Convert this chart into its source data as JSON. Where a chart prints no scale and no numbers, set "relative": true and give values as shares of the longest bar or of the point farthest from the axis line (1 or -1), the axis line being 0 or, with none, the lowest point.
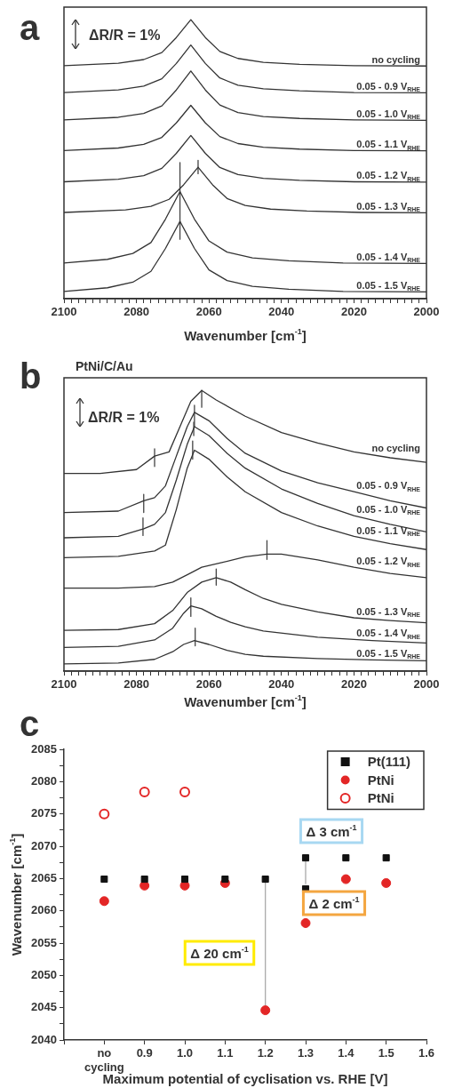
{
  "chart_data": [
    {
      "type": "line",
      "title": "a",
      "xlabel": "Wavenumber [cm$^{-1}$]",
      "relative": true,
      "xlim": [
        2100,
        2000
      ],
      "xticks": [
        2100,
        {
          "value": 2098,
          "label": null
        },
        {
          "value": 2096,
          "label": null
        },
        {
          "value": 2094,
          "label": null
        },
        {
          "value": 2092,
          "label": null
        },
        {
          "value": 2090,
          "label": null
        },
        {
          "value": 2088,
          "label": null
        },
        {
          "value": 2086,
          "label": null
        },
        {
          "value": 2084,
          "label": null
        },
        {
          "value": 2082,
          "label": null
        },
        2080,
        {
          "value": 2078,
          "label": null
        },
        {
          "value": 2076,
          "label": null
        },
        {
          "value": 2074,
          "label": null
        },
        {
          "value": 2072,
          "label": null
        },
        {
          "value": 2070,
          "label": null
        },
        {
          "value": 2068,
          "label": null
        },
        {
          "value": 2066,
          "label": null
        },
        {
          "value": 2064,
          "label": null
        },
        {
          "value": 2062,
          "label": null
        },
        2060,
        {
          "value": 2058,
          "label": null
        },
        {
          "value": 2056,
          "label": null
        },
        {
          "value": 2054,
          "label": null
        },
        {
          "value": 2052,
          "label": null
        },
        {
          "value": 2050,
          "label": null
        },
        {
          "value": 2048,
          "label": null
        },
        {
          "value": 2046,
          "label": null
        },
        {
          "value": 2044,
          "label": null
        },
        {
          "value": 2042,
          "label": null
        },
        2040,
        {
          "value": 2038,
          "label": null
        },
        {
          "value": 2036,
          "label": null
        },
        {
          "value": 2034,
          "label": null
        },
        {
          "value": 2032,
          "label": null
        },
        {
          "value": 2030,
          "label": null
        },
        {
          "value": 2028,
          "label": null
        },
        {
          "value": 2026,
          "label": null
        },
        {
          "value": 2024,
          "label": null
        },
        {
          "value": 2022,
          "label": null
        },
        2020,
        {
          "value": 2018,
          "label": null
        },
        {
          "value": 2016,
          "label": null
        },
        {
          "value": 2014,
          "label": null
        },
        {
          "value": 2012,
          "label": null
        },
        {
          "value": 2010,
          "label": null
        },
        {
          "value": 2008,
          "label": null
        },
        {
          "value": 2006,
          "label": null
        },
        {
          "value": 2004,
          "label": null
        },
        {
          "value": 2002,
          "label": null
        },
        2000
      ],
      "annotations": [
        "ΔR/R = 1%"
      ],
      "series": [
        {
          "name": "no cycling",
          "color": "#333333",
          "x": [
            2100,
            2085,
            2078,
            2073,
            2069,
            2065,
            2061,
            2057,
            2052,
            2045,
            2035,
            2020,
            2000
          ],
          "values": [
            0.835,
            0.844,
            0.857,
            0.882,
            0.936,
            1.0,
            0.936,
            0.886,
            0.861,
            0.847,
            0.84,
            0.835,
            0.834
          ]
        },
        {
          "name": "0.05 - 0.9 V$_{RHE}$",
          "color": "#333333",
          "x": [
            2100,
            2085,
            2078,
            2073,
            2069,
            2065,
            2061,
            2057,
            2052,
            2045,
            2035,
            2020,
            2000
          ],
          "values": [
            0.739,
            0.748,
            0.762,
            0.788,
            0.843,
            0.909,
            0.843,
            0.791,
            0.765,
            0.752,
            0.745,
            0.739,
            0.738
          ]
        },
        {
          "name": "0.05 - 1.0 V$_{RHE}$",
          "color": "#333333",
          "x": [
            2100,
            2085,
            2078,
            2073,
            2069,
            2065,
            2061,
            2057,
            2052,
            2045,
            2035,
            2020,
            2000
          ],
          "values": [
            0.641,
            0.65,
            0.664,
            0.691,
            0.748,
            0.816,
            0.748,
            0.694,
            0.667,
            0.653,
            0.646,
            0.641,
            0.639
          ]
        },
        {
          "name": "0.05 - 1.1 V$_{RHE}$",
          "color": "#333333",
          "x": [
            2100,
            2085,
            2078,
            2073,
            2069,
            2065,
            2061,
            2057,
            2052,
            2045,
            2035,
            2020,
            2000
          ],
          "values": [
            0.531,
            0.54,
            0.553,
            0.578,
            0.63,
            0.693,
            0.63,
            0.581,
            0.556,
            0.543,
            0.536,
            0.531,
            0.53
          ]
        },
        {
          "name": "0.05 - 1.2 V$_{RHE}$",
          "color": "#333333",
          "x": [
            2100,
            2085,
            2078,
            2073,
            2069,
            2065,
            2061,
            2057,
            2052,
            2045,
            2035,
            2020,
            2000
          ],
          "values": [
            0.419,
            0.428,
            0.441,
            0.467,
            0.521,
            0.585,
            0.521,
            0.47,
            0.445,
            0.431,
            0.424,
            0.419,
            0.418
          ]
        },
        {
          "name": "0.05 - 1.3 V$_{RHE}$",
          "color": "#333333",
          "x": [
            2100,
            2083,
            2076,
            2071,
            2067,
            2063,
            2059,
            2055,
            2050,
            2043,
            2033,
            2018,
            2000
          ],
          "values": [
            0.309,
            0.318,
            0.331,
            0.356,
            0.408,
            0.471,
            0.408,
            0.359,
            0.334,
            0.321,
            0.314,
            0.309,
            0.308
          ]
        },
        {
          "name": "0.05 - 1.4 V$_{RHE}$",
          "color": "#333333",
          "x": [
            2100,
            2088,
            2081,
            2076,
            2072,
            2068,
            2064,
            2060,
            2055,
            2048,
            2038,
            2023,
            2000
          ],
          "values": [
            0.128,
            0.141,
            0.162,
            0.201,
            0.285,
            0.384,
            0.285,
            0.207,
            0.167,
            0.146,
            0.136,
            0.128,
            0.126
          ]
        },
        {
          "name": "0.05 - 1.5 V$_{RHE}$",
          "color": "#333333",
          "x": [
            2100,
            2088,
            2081,
            2076,
            2072,
            2068,
            2064,
            2060,
            2055,
            2048,
            2038,
            2023,
            2000
          ],
          "values": [
            0.026,
            0.039,
            0.059,
            0.098,
            0.18,
            0.277,
            0.18,
            0.103,
            0.065,
            0.044,
            0.034,
            0.026,
            0.024
          ]
        },
        {
          "color": "#444444",
          "x": [
            2068,
            2068
          ],
          "values": [
            0.488,
            0.213
          ]
        },
        {
          "color": "#444444",
          "x": [
            2063,
            2063
          ],
          "values": [
            0.496,
            0.448
          ]
        }
      ]
    },
    {
      "type": "line",
      "title": "b",
      "subtitle": "PtNi/C/Au",
      "xlabel": "Wavenumber [cm$^{-1}$]",
      "relative": true,
      "xlim": [
        2100,
        2000
      ],
      "xticks": [
        2100,
        {
          "value": 2098,
          "label": null
        },
        {
          "value": 2096,
          "label": null
        },
        {
          "value": 2094,
          "label": null
        },
        {
          "value": 2092,
          "label": null
        },
        {
          "value": 2090,
          "label": null
        },
        {
          "value": 2088,
          "label": null
        },
        {
          "value": 2086,
          "label": null
        },
        {
          "value": 2084,
          "label": null
        },
        {
          "value": 2082,
          "label": null
        },
        2080,
        {
          "value": 2078,
          "label": null
        },
        {
          "value": 2076,
          "label": null
        },
        {
          "value": 2074,
          "label": null
        },
        {
          "value": 2072,
          "label": null
        },
        {
          "value": 2070,
          "label": null
        },
        {
          "value": 2068,
          "label": null
        },
        {
          "value": 2066,
          "label": null
        },
        {
          "value": 2064,
          "label": null
        },
        {
          "value": 2062,
          "label": null
        },
        2060,
        {
          "value": 2058,
          "label": null
        },
        {
          "value": 2056,
          "label": null
        },
        {
          "value": 2054,
          "label": null
        },
        {
          "value": 2052,
          "label": null
        },
        {
          "value": 2050,
          "label": null
        },
        {
          "value": 2048,
          "label": null
        },
        {
          "value": 2046,
          "label": null
        },
        {
          "value": 2044,
          "label": null
        },
        {
          "value": 2042,
          "label": null
        },
        2040,
        {
          "value": 2038,
          "label": null
        },
        {
          "value": 2036,
          "label": null
        },
        {
          "value": 2034,
          "label": null
        },
        {
          "value": 2032,
          "label": null
        },
        {
          "value": 2030,
          "label": null
        },
        {
          "value": 2028,
          "label": null
        },
        {
          "value": 2026,
          "label": null
        },
        {
          "value": 2024,
          "label": null
        },
        {
          "value": 2022,
          "label": null
        },
        2020,
        {
          "value": 2018,
          "label": null
        },
        {
          "value": 2016,
          "label": null
        },
        {
          "value": 2014,
          "label": null
        },
        {
          "value": 2012,
          "label": null
        },
        {
          "value": 2010,
          "label": null
        },
        {
          "value": 2008,
          "label": null
        },
        {
          "value": 2006,
          "label": null
        },
        {
          "value": 2004,
          "label": null
        },
        {
          "value": 2002,
          "label": null
        },
        2000
      ],
      "annotations": [
        "ΔR/R = 1%"
      ],
      "series": [
        {
          "name": "no cycling",
          "color": "#333333",
          "x": [
            2100,
            2090,
            2080,
            2075,
            2071,
            2068,
            2065,
            2062,
            2058,
            2050,
            2040,
            2030,
            2020,
            2010,
            2000
          ],
          "values": [
            0.704,
            0.704,
            0.718,
            0.766,
            0.781,
            0.871,
            0.961,
            1.0,
            0.966,
            0.908,
            0.85,
            0.813,
            0.781,
            0.76,
            0.744
          ]
        },
        {
          "name": "0.05 - 0.9 V$_{RHE}$",
          "color": "#333333",
          "x": [
            2100,
            2085,
            2078,
            2075,
            2072,
            2069,
            2066,
            2064,
            2060,
            2055,
            2050,
            2040,
            2030,
            2020,
            2010,
            2000
          ],
          "values": [
            0.565,
            0.57,
            0.607,
            0.618,
            0.66,
            0.766,
            0.871,
            0.922,
            0.892,
            0.829,
            0.776,
            0.713,
            0.671,
            0.639,
            0.607,
            0.581
          ]
        },
        {
          "name": "0.05 - 1.0 V$_{RHE}$",
          "color": "#333333",
          "x": [
            2100,
            2085,
            2078,
            2075,
            2072,
            2069,
            2066,
            2064,
            2060,
            2055,
            2050,
            2040,
            2030,
            2020,
            2010,
            2000
          ],
          "values": [
            0.475,
            0.48,
            0.507,
            0.523,
            0.565,
            0.681,
            0.808,
            0.871,
            0.839,
            0.776,
            0.723,
            0.649,
            0.597,
            0.554,
            0.523,
            0.496
          ]
        },
        {
          "name": "0.05 - 1.1 V$_{RHE}$",
          "color": "#333333",
          "x": [
            2100,
            2085,
            2075,
            2072,
            2069,
            2066,
            2064,
            2060,
            2055,
            2050,
            2040,
            2030,
            2020,
            2010,
            2000
          ],
          "values": [
            0.404,
            0.409,
            0.428,
            0.449,
            0.576,
            0.723,
            0.787,
            0.755,
            0.692,
            0.639,
            0.565,
            0.517,
            0.48,
            0.454,
            0.433
          ]
        },
        {
          "name": "0.05 - 1.2 V$_{RHE}$",
          "color": "#333333",
          "x": [
            2100,
            2085,
            2075,
            2070,
            2066,
            2062,
            2057,
            2050,
            2044,
            2040,
            2030,
            2020,
            2010,
            2000
          ],
          "values": [
            0.296,
            0.296,
            0.301,
            0.317,
            0.343,
            0.37,
            0.385,
            0.407,
            0.417,
            0.417,
            0.396,
            0.37,
            0.348,
            0.333
          ]
        },
        {
          "name": "0.05 - 1.3 V$_{RHE}$",
          "color": "#333333",
          "x": [
            2100,
            2085,
            2075,
            2070,
            2066,
            2062,
            2058,
            2054,
            2050,
            2045,
            2040,
            2030,
            2020,
            2010,
            2000
          ],
          "values": [
            0.145,
            0.148,
            0.169,
            0.216,
            0.28,
            0.317,
            0.333,
            0.317,
            0.29,
            0.259,
            0.238,
            0.211,
            0.19,
            0.18,
            0.172
          ]
        },
        {
          "name": "0.05 - 1.4 V$_{RHE}$",
          "color": "#333333",
          "x": [
            2100,
            2085,
            2075,
            2070,
            2067,
            2065,
            2062,
            2058,
            2054,
            2050,
            2045,
            2030,
            2015,
            2000
          ],
          "values": [
            0.084,
            0.088,
            0.111,
            0.153,
            0.206,
            0.232,
            0.222,
            0.195,
            0.174,
            0.158,
            0.143,
            0.121,
            0.109,
            0.1
          ]
        },
        {
          "name": "0.05 - 1.5 V$_{RHE}$",
          "color": "#333333",
          "x": [
            2100,
            2085,
            2075,
            2070,
            2067,
            2064,
            2060,
            2055,
            2050,
            2045,
            2030,
            2015,
            2000
          ],
          "values": [
            0.026,
            0.029,
            0.042,
            0.069,
            0.095,
            0.109,
            0.095,
            0.074,
            0.06,
            0.053,
            0.045,
            0.04,
            0.037
          ]
        },
        {
          "color": "#444444",
          "x": [
            2062,
            2062
          ],
          "values": [
            1.0,
            0.94
          ]
        },
        {
          "color": "#444444",
          "x": [
            2075,
            2075
          ],
          "values": [
            0.792,
            0.729
          ]
        },
        {
          "color": "#444444",
          "x": [
            2064,
            2064
          ],
          "values": [
            0.947,
            0.871
          ]
        },
        {
          "color": "#444444",
          "x": [
            2078,
            2078
          ],
          "values": [
            0.63,
            0.565
          ]
        },
        {
          "color": "#444444",
          "x": [
            2064.2,
            2064.2
          ],
          "values": [
            0.887,
            0.839
          ]
        },
        {
          "color": "#444444",
          "x": [
            2078.2,
            2078.2
          ],
          "values": [
            0.546,
            0.483
          ]
        },
        {
          "color": "#444444",
          "x": [
            2064.5,
            2064.5
          ],
          "values": [
            0.82,
            0.755
          ]
        },
        {
          "color": "#444444",
          "x": [
            2044,
            2044
          ],
          "values": [
            0.465,
            0.398
          ]
        },
        {
          "color": "#444444",
          "x": [
            2058,
            2058
          ],
          "values": [
            0.364,
            0.306
          ]
        },
        {
          "color": "#444444",
          "x": [
            2065,
            2065
          ],
          "values": [
            0.261,
            0.195
          ]
        },
        {
          "color": "#444444",
          "x": [
            2063.8,
            2063.8
          ],
          "values": [
            0.153,
            0.09
          ]
        }
      ]
    },
    {
      "type": "scatter",
      "title": "c",
      "xlabel": "Maximum potential of cyclisation vs. RHE [V]",
      "ylabel": "Wavenumber [cm$^{-1}$]",
      "legend": "top right",
      "xlim": [
        0.7,
        1.6
      ],
      "xticks": [
        {
          "value": 0.7,
          "label": null
        },
        {
          "value": 0.8,
          "label": "no cycling"
        },
        0.9,
        {
          "value": 1,
          "label": "1.0"
        },
        1.1,
        1.2,
        1.3,
        1.4,
        1.5,
        1.6
      ],
      "ylim": [
        2040,
        2085
      ],
      "yticks": [
        2040,
        {
          "value": 2042.5,
          "label": null
        },
        2045,
        {
          "value": 2047.5,
          "label": null
        },
        2050,
        {
          "value": 2052.5,
          "label": null
        },
        2055,
        {
          "value": 2057.5,
          "label": null
        },
        2060,
        {
          "value": 2062.5,
          "label": null
        },
        2065,
        {
          "value": 2067.5,
          "label": null
        },
        2070,
        {
          "value": 2072.5,
          "label": null
        },
        2075,
        {
          "value": 2077.5,
          "label": null
        },
        2080,
        {
          "value": 2082.5,
          "label": null
        },
        2085
      ],
      "annotations": [
        "Δ 20 cm$^{-1}$",
        "Δ 3 cm$^{-1}$",
        "Δ 2 cm$^{-1}$"
      ],
      "series": [
        {
          "type": "line",
          "color": "#aaaaaa",
          "marker": "none",
          "x": [
            1.2,
            1.2
          ],
          "values": [
            2064.9,
            2045.2
          ]
        },
        {
          "type": "line",
          "color": "#aaaaaa",
          "marker": "none",
          "x": [
            1.3,
            1.3
          ],
          "values": [
            2067.6,
            2064.2
          ]
        },
        {
          "name": "Pt(111)",
          "color": "#111111",
          "marker": "square",
          "x": [
            0.8,
            0.9,
            1,
            1.1,
            1.2,
            1.3,
            1.3,
            1.4,
            1.5
          ],
          "values": [
            2064.9,
            2064.9,
            2064.9,
            2064.9,
            2064.9,
            2068.2,
            2063.4,
            2068.2,
            2068.2
          ]
        },
        {
          "name": "PtNi",
          "color": "#e32626",
          "marker": "circle",
          "x": [
            0.8,
            0.9,
            1,
            1.1,
            1.2,
            1.3,
            1.4,
            1.5
          ],
          "values": [
            2061.5,
            2063.9,
            2063.9,
            2064.3,
            2044.6,
            2058.1,
            2064.9,
            2064.3
          ]
        },
        {
          "name": "PtNi",
          "color": "#e32626",
          "marker": "circle",
          "x": [
            0.8,
            0.9,
            1
          ],
          "values": [
            2075,
            2078.4,
            2078.4
          ]
        }
      ]
    }
  ]
}
